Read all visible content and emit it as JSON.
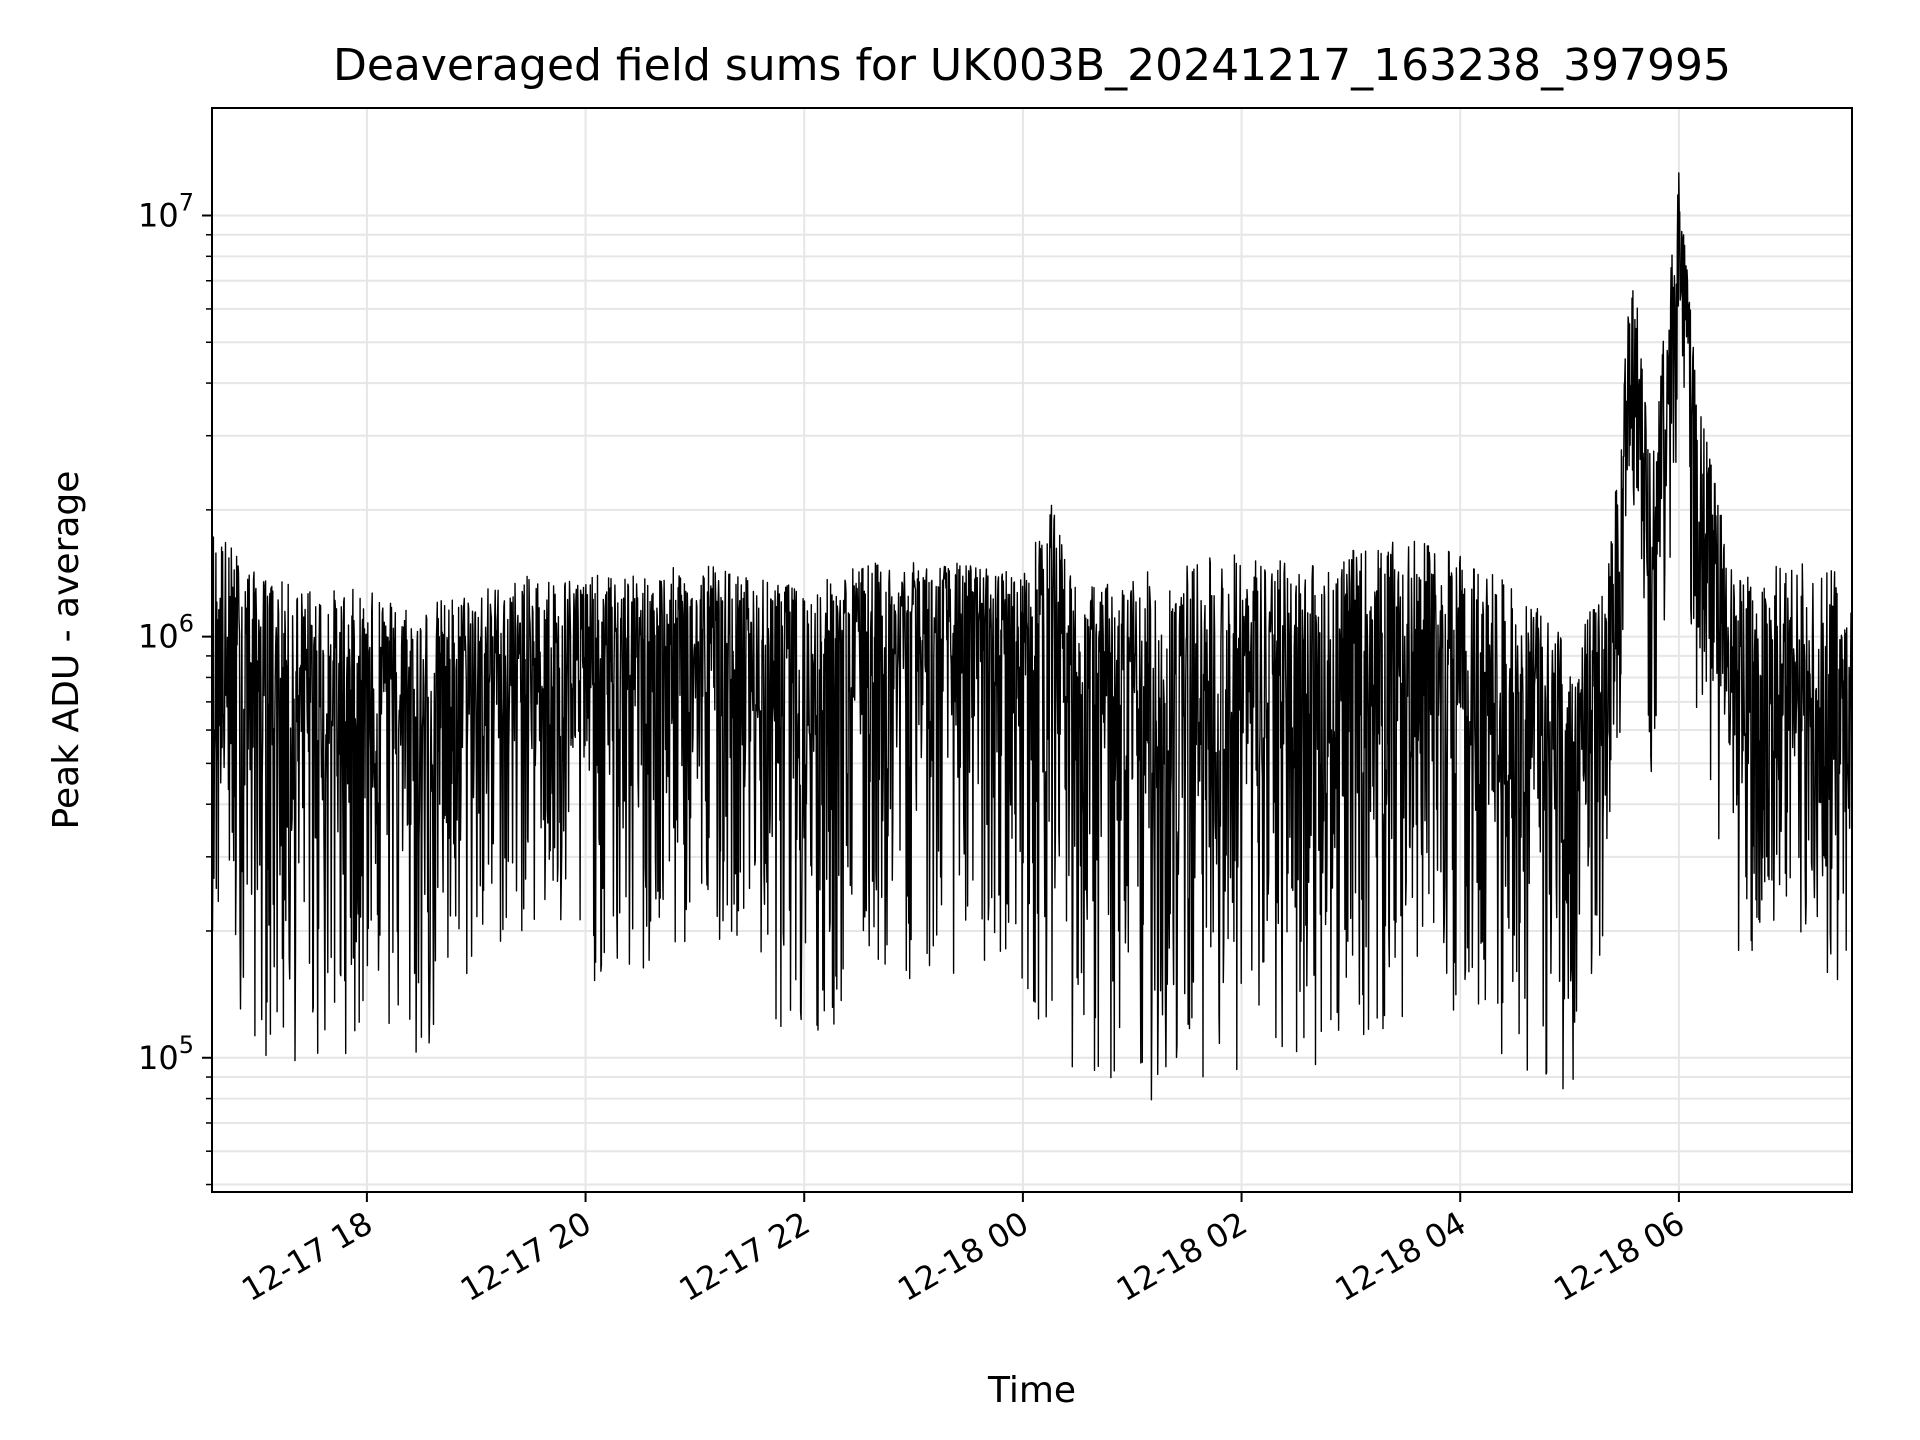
{
  "chart_data": {
    "type": "line",
    "title": "Deaveraged field sums for UK003B_20241217_163238_397995",
    "xlabel": "Time",
    "ylabel": "Peak ADU - average",
    "yscale": "log",
    "ylim": [
      48000,
      18000000
    ],
    "xlim": [
      "2024-12-17 16:35",
      "2024-12-18 07:35"
    ],
    "grid": true,
    "line_color": "#000000",
    "x_ticks": [
      {
        "at": "2024-12-17 18:00",
        "label": "12-17 18"
      },
      {
        "at": "2024-12-17 20:00",
        "label": "12-17 20"
      },
      {
        "at": "2024-12-17 22:00",
        "label": "12-17 22"
      },
      {
        "at": "2024-12-18 00:00",
        "label": "12-18 00"
      },
      {
        "at": "2024-12-18 02:00",
        "label": "12-18 02"
      },
      {
        "at": "2024-12-18 04:00",
        "label": "12-18 04"
      },
      {
        "at": "2024-12-18 06:00",
        "label": "12-18 06"
      }
    ],
    "y_ticks": [
      {
        "value": 100000,
        "base": "10",
        "exp": "5"
      },
      {
        "value": 1000000,
        "base": "10",
        "exp": "6"
      },
      {
        "value": 10000000,
        "base": "10",
        "exp": "7"
      }
    ],
    "series": [
      {
        "name": "",
        "x": [
          "2024-12-17 16:35",
          "2024-12-17 17:00",
          "2024-12-17 17:30",
          "2024-12-17 18:00",
          "2024-12-17 18:30",
          "2024-12-17 19:00",
          "2024-12-17 19:30",
          "2024-12-17 20:00",
          "2024-12-17 20:30",
          "2024-12-17 21:00",
          "2024-12-17 21:30",
          "2024-12-17 22:00",
          "2024-12-17 22:30",
          "2024-12-17 23:00",
          "2024-12-17 23:30",
          "2024-12-18 00:00",
          "2024-12-18 00:15",
          "2024-12-18 00:30",
          "2024-12-18 01:00",
          "2024-12-18 01:30",
          "2024-12-18 02:00",
          "2024-12-18 02:30",
          "2024-12-18 03:00",
          "2024-12-18 03:30",
          "2024-12-18 04:00",
          "2024-12-18 04:30",
          "2024-12-18 05:00",
          "2024-12-18 05:20",
          "2024-12-18 05:35",
          "2024-12-18 05:45",
          "2024-12-18 06:00",
          "2024-12-18 06:10",
          "2024-12-18 06:30",
          "2024-12-18 07:00",
          "2024-12-18 07:35"
        ],
        "y_center": [
          650000,
          750000,
          600000,
          650000,
          500000,
          700000,
          750000,
          780000,
          750000,
          750000,
          700000,
          650000,
          800000,
          850000,
          880000,
          850000,
          1100000,
          550000,
          550000,
          550000,
          600000,
          550000,
          600000,
          650000,
          700000,
          450000,
          380000,
          700000,
          4000000,
          1200000,
          8000000,
          2000000,
          600000,
          550000,
          500000
        ],
        "y_high": [
          1900000,
          1400000,
          1300000,
          1300000,
          1200000,
          1300000,
          1400000,
          1400000,
          1400000,
          1500000,
          1400000,
          1300000,
          1500000,
          1500000,
          1500000,
          1400000,
          2100000,
          1300000,
          1400000,
          1500000,
          1600000,
          1500000,
          1600000,
          1700000,
          1600000,
          1300000,
          1000000,
          1300000,
          8200000,
          2500000,
          13000000,
          3800000,
          1400000,
          1500000,
          1500000
        ],
        "y_low": [
          200000,
          100000,
          90000,
          110000,
          90000,
          160000,
          200000,
          150000,
          140000,
          180000,
          200000,
          70000,
          160000,
          150000,
          160000,
          140000,
          110000,
          90000,
          70000,
          90000,
          90000,
          90000,
          100000,
          110000,
          130000,
          90000,
          80000,
          200000,
          1600000,
          450000,
          2500000,
          650000,
          180000,
          150000,
          150000
        ]
      }
    ]
  }
}
